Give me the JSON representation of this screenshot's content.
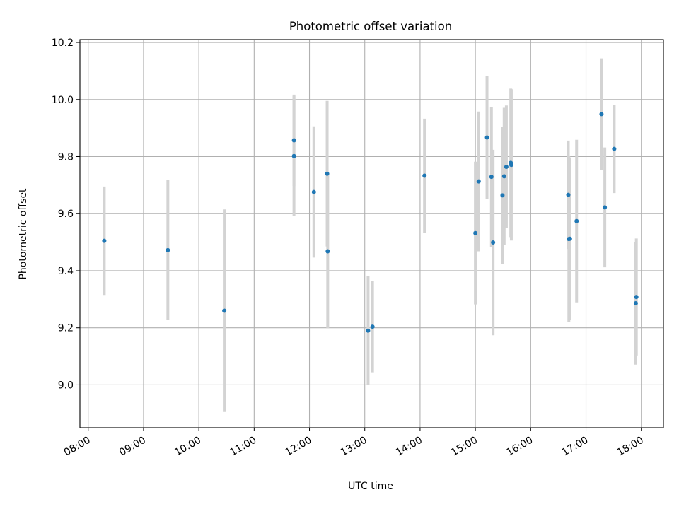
{
  "chart_data": {
    "type": "scatter",
    "title": "Photometric offset variation",
    "xlabel": "UTC time",
    "ylabel": "Photometric offset",
    "x_unit": "hours UTC",
    "xlim": [
      7.85,
      18.4
    ],
    "ylim": [
      8.85,
      10.21
    ],
    "x_ticks": [
      8,
      9,
      10,
      11,
      12,
      13,
      14,
      15,
      16,
      17,
      18
    ],
    "x_tick_labels": [
      "08:00",
      "09:00",
      "10:00",
      "11:00",
      "12:00",
      "13:00",
      "14:00",
      "15:00",
      "16:00",
      "17:00",
      "18:00"
    ],
    "y_ticks": [
      9.0,
      9.2,
      9.4,
      9.6,
      9.8,
      10.0,
      10.2
    ],
    "y_tick_labels": [
      "9.0",
      "9.2",
      "9.4",
      "9.6",
      "9.8",
      "10.0",
      "10.2"
    ],
    "grid": true,
    "marker_color": "#1f77b4",
    "errorbar_color": "#d3d3d3",
    "points": [
      {
        "x": 8.29,
        "y": 9.505,
        "err": 0.19
      },
      {
        "x": 9.44,
        "y": 9.472,
        "err": 0.245
      },
      {
        "x": 10.46,
        "y": 9.26,
        "err": 0.355
      },
      {
        "x": 11.72,
        "y": 9.857,
        "err": 0.16
      },
      {
        "x": 11.72,
        "y": 9.802,
        "err": 0.21
      },
      {
        "x": 12.08,
        "y": 9.676,
        "err": 0.23
      },
      {
        "x": 12.32,
        "y": 9.74,
        "err": 0.255
      },
      {
        "x": 12.33,
        "y": 9.468,
        "err": 0.27
      },
      {
        "x": 13.06,
        "y": 9.19,
        "err": 0.19
      },
      {
        "x": 13.14,
        "y": 9.204,
        "err": 0.16
      },
      {
        "x": 14.08,
        "y": 9.733,
        "err": 0.2
      },
      {
        "x": 15.0,
        "y": 9.532,
        "err": 0.25
      },
      {
        "x": 15.06,
        "y": 9.713,
        "err": 0.245
      },
      {
        "x": 15.21,
        "y": 9.867,
        "err": 0.215
      },
      {
        "x": 15.29,
        "y": 9.729,
        "err": 0.245
      },
      {
        "x": 15.32,
        "y": 9.499,
        "err": 0.325
      },
      {
        "x": 15.49,
        "y": 9.664,
        "err": 0.24
      },
      {
        "x": 15.52,
        "y": 9.731,
        "err": 0.24
      },
      {
        "x": 15.56,
        "y": 9.764,
        "err": 0.215
      },
      {
        "x": 15.64,
        "y": 9.778,
        "err": 0.26
      },
      {
        "x": 15.65,
        "y": 9.771,
        "err": 0.265
      },
      {
        "x": 16.68,
        "y": 9.666,
        "err": 0.19
      },
      {
        "x": 16.69,
        "y": 9.511,
        "err": 0.29
      },
      {
        "x": 16.71,
        "y": 9.512,
        "err": 0.285
      },
      {
        "x": 16.83,
        "y": 9.574,
        "err": 0.285
      },
      {
        "x": 17.28,
        "y": 9.949,
        "err": 0.195
      },
      {
        "x": 17.34,
        "y": 9.622,
        "err": 0.21
      },
      {
        "x": 17.51,
        "y": 9.827,
        "err": 0.155
      },
      {
        "x": 17.9,
        "y": 9.286,
        "err": 0.215
      },
      {
        "x": 17.91,
        "y": 9.308,
        "err": 0.205
      }
    ]
  }
}
